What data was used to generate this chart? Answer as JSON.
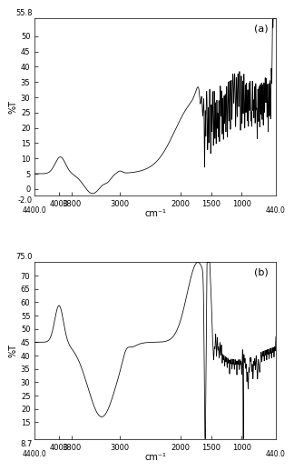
{
  "panel_a": {
    "label": "(a)",
    "xlim": [
      4400,
      440
    ],
    "ylim": [
      -2.0,
      55.8
    ],
    "yticks": [
      0,
      5,
      10,
      15,
      20,
      25,
      30,
      35,
      40,
      45,
      50
    ],
    "ytick_top": "55.8",
    "ytick_bottom": "-2.0",
    "xtick_left": "4400.0",
    "xtick_right": "440.0",
    "xticks": [
      4000,
      3800,
      3000,
      2000,
      1500,
      1000
    ],
    "xlabel": "cm⁻¹",
    "ylabel": "%T"
  },
  "panel_b": {
    "label": "(b)",
    "xlim": [
      4400,
      440
    ],
    "ylim": [
      8.7,
      75.0
    ],
    "yticks": [
      15,
      20,
      25,
      30,
      35,
      40,
      45,
      50,
      55,
      60,
      65,
      70
    ],
    "ytick_top": "75.0",
    "ytick_bottom": "8.7",
    "xtick_left": "4400.0",
    "xtick_right": "440.0",
    "xticks": [
      4000,
      3800,
      3000,
      2000,
      1500,
      1000
    ],
    "xlabel": "cm⁻¹",
    "ylabel": "%T"
  },
  "line_color": "#000000",
  "bg_color": "#ffffff",
  "font_size_tick": 6,
  "font_size_axis_label": 7,
  "font_size_panel_label": 8
}
